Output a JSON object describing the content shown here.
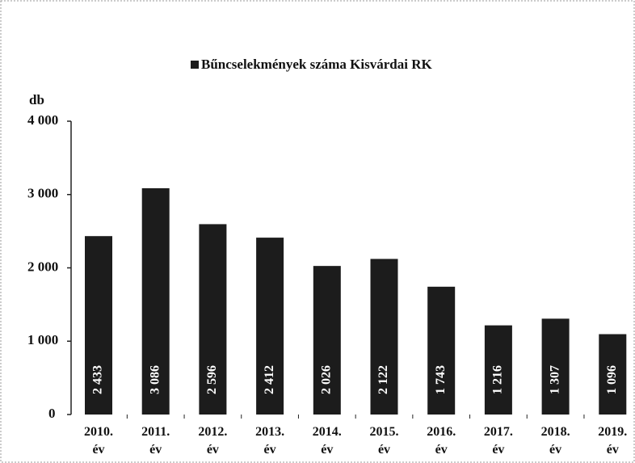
{
  "chart_data": {
    "type": "bar",
    "ylabel": "db",
    "categories": [
      "2010. év",
      "2011. év",
      "2012. év",
      "2013. év",
      "2014. év",
      "2015. év",
      "2016. év",
      "2017. év",
      "2018. év",
      "2019. év"
    ],
    "series": [
      {
        "name": "Bűncselekmények száma Kisvárdai RK",
        "color": "#1c1c1c",
        "values": [
          2433,
          3086,
          2596,
          2412,
          2026,
          2122,
          1743,
          1216,
          1307,
          1096
        ],
        "value_labels": [
          "2 433",
          "3 086",
          "2 596",
          "2 412",
          "2 026",
          "2 122",
          "1 743",
          "1 216",
          "1 307",
          "1 096"
        ]
      }
    ],
    "ylim": [
      0,
      4000
    ],
    "yticks": [
      0,
      {
        "value": 1000,
        "label": "1 000"
      },
      {
        "value": 2000,
        "label": "2 000"
      },
      {
        "value": 3000,
        "label": "3 000"
      },
      {
        "value": 4000,
        "label": "4 000"
      }
    ],
    "legend": "top",
    "grid": false
  }
}
